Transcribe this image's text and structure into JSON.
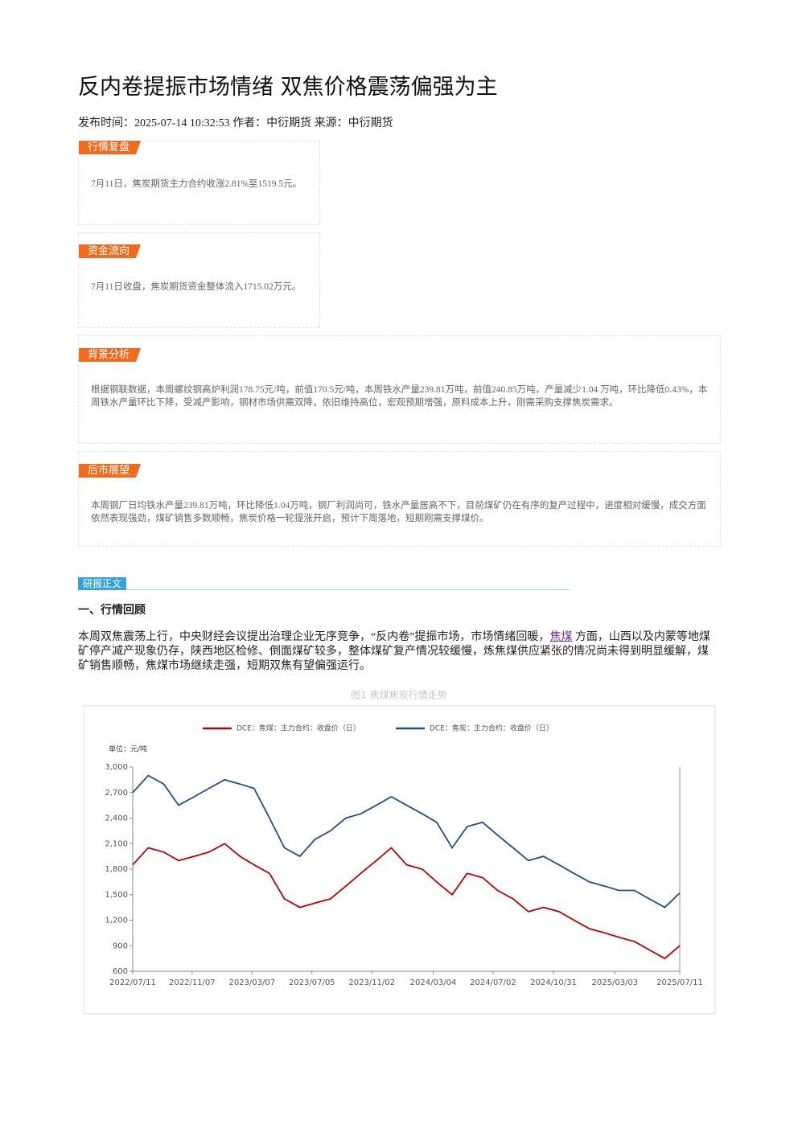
{
  "title": "反内卷提振市场情绪 双焦价格震荡偏强为主",
  "meta": "发布时间：2025-07-14 10:32:53 作者：中衍期货 来源：中衍期货",
  "sections": [
    {
      "tag": "行情复盘",
      "text": "7月11日，焦炭期货主力合约收涨2.81%至1519.5元。"
    },
    {
      "tag": "资金流向",
      "text": "7月11日收盘，焦炭期货资金整体流入1715.02万元。"
    },
    {
      "tag": "背景分析",
      "text": "根据钢联数据，本周螺纹钢高炉利润178.75元/吨，前值170.5元/吨，本周铁水产量239.81万吨，前值240.85万吨，产量减少1.04 万吨，环比降低0.43%，本周铁水产量环比下降，受减产影响，钢材市场供需双降，依旧维持高位，宏观预期增强，原料成本上升，刚需采购支撑焦炭需求。"
    },
    {
      "tag": "后市展望",
      "text": "本周钢厂日均铁水产量239.81万吨，环比降低1.04万吨，钢厂利润尚可，铁水产量居高不下，目前煤矿仍在有序的复产过程中，进度相对缓慢，成交方面依然表现强劲，煤矿销售多数顺畅，焦炭价格一轮提涨开启，预计下周落地，短期刚需支撑煤价。"
    }
  ],
  "report_tag": "研报正文",
  "heading": "一、行情回顾",
  "paragraph": {
    "before": "本周双焦震荡上行，中央财经会议提出治理企业无序竞争，“反内卷”提振市场，市场情绪回暖，",
    "link": "焦煤",
    "after": " 方面，山西以及内蒙等地煤矿停产减产现象仍存，陕西地区检修、倒面煤矿较多，整体煤矿复产情况较缓慢，炼焦煤供应紧张的情况尚未得到明显缓解，煤矿销售顺畅，焦煤市场继续走强，短期双焦有望偏强运行。"
  },
  "chart_data": {
    "type": "line",
    "title": "图1 焦煤焦炭行情走势",
    "y_label": "单位：元/吨",
    "x": [
      "2022/07/11",
      "2022/08/11",
      "2022/09/11",
      "2022/10/11",
      "2022/11/11",
      "2022/12/11",
      "2023/01/11",
      "2023/02/11",
      "2023/03/11",
      "2023/04/11",
      "2023/05/11",
      "2023/06/11",
      "2023/07/11",
      "2023/08/11",
      "2023/09/11",
      "2023/10/11",
      "2023/11/11",
      "2023/12/11",
      "2024/01/11",
      "2024/02/11",
      "2024/03/11",
      "2024/04/11",
      "2024/05/11",
      "2024/06/11",
      "2024/07/11",
      "2024/08/11",
      "2024/09/11",
      "2024/10/11",
      "2024/11/11",
      "2024/12/11",
      "2025/01/11",
      "2025/02/11",
      "2025/03/11",
      "2025/04/11",
      "2025/05/11",
      "2025/06/11",
      "2025/07/11"
    ],
    "series": [
      {
        "name": "DCE：焦煤：主力合约：收盘价（日）",
        "color": "#c00000",
        "values": [
          1850,
          2050,
          2000,
          1900,
          1950,
          2000,
          2100,
          1950,
          1850,
          1750,
          1450,
          1350,
          1400,
          1450,
          1600,
          1750,
          1900,
          2050,
          1850,
          1800,
          1650,
          1500,
          1750,
          1700,
          1550,
          1450,
          1300,
          1350,
          1300,
          1200,
          1100,
          1050,
          1000,
          950,
          850,
          750,
          900
        ]
      },
      {
        "name": "DCE：焦炭：主力合约：收盘价（日）",
        "color": "#1f4e8c",
        "values": [
          2700,
          2900,
          2800,
          2550,
          2650,
          2750,
          2850,
          2800,
          2750,
          2400,
          2050,
          1950,
          2150,
          2250,
          2400,
          2450,
          2550,
          2650,
          2550,
          2450,
          2350,
          2050,
          2300,
          2350,
          2200,
          2050,
          1900,
          1950,
          1850,
          1750,
          1650,
          1600,
          1550,
          1550,
          1450,
          1350,
          1520
        ]
      }
    ],
    "xlim": [
      "2022/07/11",
      "2025/07/11"
    ],
    "xticks": [
      "2022/07/11",
      "2022/11/07",
      "2023/03/07",
      "2023/07/05",
      "2023/11/02",
      "2024/03/04",
      "2024/07/02",
      "2024/10/31",
      "2025/03/03",
      "2025/07/11"
    ],
    "ylim": [
      600,
      3000
    ],
    "yticks": [
      600,
      900,
      {
        "value": 1200,
        "label": "1,200"
      },
      {
        "value": 1500,
        "label": "1,500"
      },
      {
        "value": 1800,
        "label": "1,800"
      },
      {
        "value": 2100,
        "label": "2,100"
      },
      {
        "value": 2400,
        "label": "2,400"
      },
      {
        "value": 2700,
        "label": "2,700"
      },
      {
        "value": 3000,
        "label": "3,000"
      }
    ],
    "grid": false
  }
}
